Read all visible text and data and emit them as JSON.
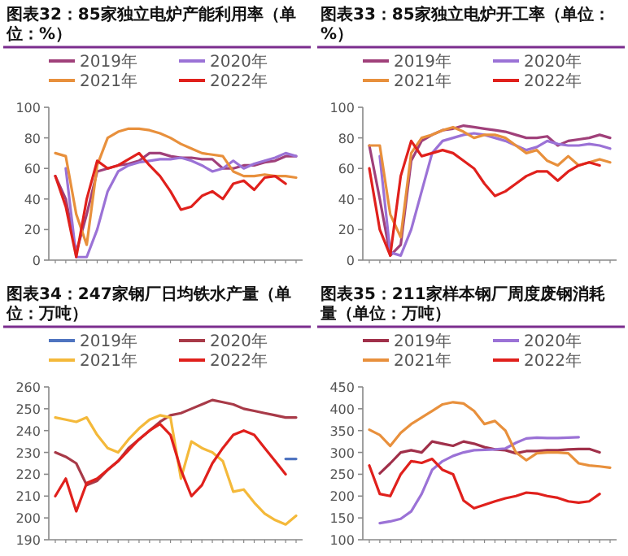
{
  "chart_data": [
    {
      "type": "line",
      "title": "图表32：85家独立电炉产能利用率（单位：%）",
      "legend": "top",
      "ylim": [
        0,
        100
      ],
      "yticks": [
        0,
        20,
        40,
        60,
        80,
        100
      ],
      "categories": [
        null,
        null,
        null,
        null,
        null,
        null,
        null,
        null,
        null,
        null,
        null,
        null,
        null,
        null,
        null,
        null,
        null,
        null,
        null,
        null,
        null,
        null,
        null,
        null
      ],
      "series": [
        {
          "name": "2019年",
          "color": "#a0407a",
          "values": [
            55,
            40,
            5,
            30,
            58,
            60,
            62,
            63,
            65,
            70,
            70,
            68,
            67,
            67,
            66,
            66,
            60,
            60,
            62,
            62,
            64,
            65,
            68,
            68
          ]
        },
        {
          "name": "2020年",
          "color": "#9b72d6",
          "values": [
            null,
            60,
            2,
            2,
            20,
            45,
            58,
            62,
            64,
            65,
            66,
            66,
            67,
            65,
            62,
            58,
            60,
            65,
            60,
            63,
            65,
            67,
            70,
            68
          ]
        },
        {
          "name": "2021年",
          "color": "#e8903c",
          "values": [
            70,
            68,
            30,
            10,
            62,
            80,
            84,
            86,
            86,
            85,
            83,
            80,
            76,
            73,
            70,
            69,
            68,
            58,
            55,
            55,
            56,
            55,
            55,
            54
          ]
        },
        {
          "name": "2022年",
          "color": "#e0201c",
          "values": [
            55,
            35,
            2,
            40,
            65,
            60,
            62,
            66,
            70,
            62,
            55,
            45,
            33,
            35,
            42,
            45,
            40,
            50,
            52,
            46,
            54,
            55,
            50,
            null
          ]
        }
      ]
    },
    {
      "type": "line",
      "title": "图表33：85家独立电炉开工率（单位：%）",
      "legend": "top",
      "ylim": [
        0,
        100
      ],
      "yticks": [
        0,
        20,
        40,
        60,
        80,
        100
      ],
      "categories": [
        null,
        null,
        null,
        null,
        null,
        null,
        null,
        null,
        null,
        null,
        null,
        null,
        null,
        null,
        null,
        null,
        null,
        null,
        null,
        null,
        null,
        null,
        null,
        null
      ],
      "series": [
        {
          "name": "2019年",
          "color": "#a0407a",
          "values": [
            75,
            40,
            3,
            10,
            65,
            78,
            82,
            85,
            86,
            88,
            87,
            86,
            85,
            84,
            82,
            80,
            80,
            81,
            75,
            78,
            79,
            80,
            82,
            80
          ]
        },
        {
          "name": "2020年",
          "color": "#9b72d6",
          "values": [
            null,
            68,
            5,
            3,
            20,
            45,
            70,
            78,
            80,
            82,
            83,
            82,
            80,
            78,
            75,
            72,
            74,
            78,
            76,
            75,
            75,
            76,
            75,
            73
          ]
        },
        {
          "name": "2021年",
          "color": "#e8903c",
          "values": [
            75,
            75,
            30,
            15,
            70,
            80,
            82,
            85,
            87,
            84,
            80,
            82,
            82,
            80,
            75,
            70,
            72,
            65,
            62,
            68,
            62,
            64,
            66,
            64
          ]
        },
        {
          "name": "2022年",
          "color": "#e0201c",
          "values": [
            60,
            20,
            3,
            55,
            78,
            68,
            70,
            72,
            70,
            65,
            60,
            50,
            42,
            45,
            50,
            55,
            58,
            58,
            52,
            58,
            62,
            64,
            62,
            null
          ]
        }
      ]
    },
    {
      "type": "line",
      "title": "图表34：247家钢厂日均铁水产量（单位：万吨）",
      "legend": "top",
      "ylim": [
        190,
        260
      ],
      "yticks": [
        190,
        200,
        210,
        220,
        230,
        240,
        250,
        260
      ],
      "categories": [
        null,
        null,
        null,
        null,
        null,
        null,
        null,
        null,
        null,
        null,
        null,
        null,
        null,
        null,
        null,
        null,
        null,
        null,
        null,
        null,
        null,
        null,
        null,
        null
      ],
      "series": [
        {
          "name": "2019年",
          "color": "#4f74c0",
          "values": [
            null,
            null,
            null,
            null,
            null,
            null,
            null,
            null,
            null,
            null,
            null,
            null,
            null,
            null,
            null,
            null,
            null,
            null,
            null,
            null,
            null,
            null,
            227,
            227
          ]
        },
        {
          "name": "2020年",
          "color": "#a83a48",
          "values": [
            230,
            228,
            225,
            215,
            217,
            222,
            226,
            232,
            236,
            240,
            244,
            247,
            248,
            250,
            252,
            254,
            253,
            252,
            250,
            249,
            248,
            247,
            246,
            246
          ]
        },
        {
          "name": "2021年",
          "color": "#f4b93a",
          "values": [
            246,
            245,
            244,
            246,
            238,
            232,
            230,
            236,
            241,
            245,
            247,
            246,
            218,
            235,
            232,
            230,
            226,
            212,
            213,
            207,
            202,
            199,
            197,
            201
          ]
        },
        {
          "name": "2022年",
          "color": "#e0201c",
          "values": [
            210,
            218,
            203,
            216,
            218,
            222,
            226,
            231,
            236,
            240,
            243,
            238,
            222,
            210,
            215,
            225,
            232,
            238,
            240,
            238,
            232,
            226,
            220,
            null
          ]
        }
      ]
    },
    {
      "type": "line",
      "title": "图表35：211家样本钢厂周度废钢消耗量（单位：万吨）",
      "legend": "top",
      "ylim": [
        100,
        450
      ],
      "yticks": [
        100,
        150,
        200,
        250,
        300,
        350,
        400,
        450
      ],
      "categories": [
        null,
        null,
        null,
        null,
        null,
        null,
        null,
        null,
        null,
        null,
        null,
        null,
        null,
        null,
        null,
        null,
        null,
        null,
        null,
        null,
        null,
        null,
        null,
        null
      ],
      "series": [
        {
          "name": "2019年",
          "color": "#a0304a",
          "values": [
            null,
            252,
            275,
            300,
            305,
            300,
            325,
            320,
            315,
            325,
            320,
            312,
            307,
            305,
            298,
            303,
            303,
            305,
            305,
            307,
            308,
            308,
            300,
            null
          ]
        },
        {
          "name": "2020年",
          "color": "#9b72d6",
          "values": [
            null,
            138,
            142,
            148,
            165,
            205,
            260,
            280,
            292,
            300,
            305,
            306,
            307,
            309,
            322,
            332,
            334,
            333,
            333,
            334,
            335,
            null,
            null,
            null
          ]
        },
        {
          "name": "2021年",
          "color": "#e8903c",
          "values": [
            352,
            340,
            315,
            345,
            365,
            380,
            395,
            410,
            415,
            412,
            395,
            365,
            372,
            350,
            300,
            282,
            298,
            300,
            300,
            298,
            275,
            270,
            268,
            265
          ]
        },
        {
          "name": "2022年",
          "color": "#e0201c",
          "values": [
            270,
            205,
            200,
            250,
            280,
            276,
            285,
            260,
            250,
            190,
            172,
            180,
            188,
            195,
            200,
            208,
            206,
            200,
            196,
            188,
            185,
            188,
            205,
            null
          ]
        }
      ]
    }
  ]
}
